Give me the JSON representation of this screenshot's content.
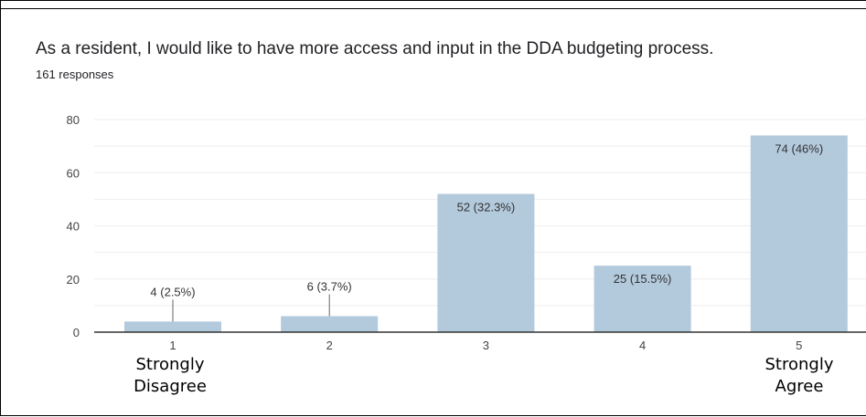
{
  "question": "As a resident, I would like to have more access and input in the DDA budgeting process.",
  "responses": "161 responses",
  "scale_labels": {
    "low": [
      "Strongly",
      "Disagree"
    ],
    "high": [
      "Strongly",
      "Agree"
    ]
  },
  "colors": {
    "bar": "#b3c9dc",
    "grid": "#eeeeee",
    "axis": "#333333"
  },
  "chart_data": {
    "type": "bar",
    "title": "As a resident, I would like to have more access and input in the DDA budgeting process.",
    "categories": [
      "1",
      "2",
      "3",
      "4",
      "5"
    ],
    "values": [
      4,
      6,
      52,
      25,
      74
    ],
    "data_labels": [
      "4 (2.5%)",
      "6 (3.7%)",
      "52 (32.3%)",
      "25 (15.5%)",
      "74 (46%)"
    ],
    "ylim": [
      0,
      80
    ],
    "yticks": [
      0,
      20,
      40,
      60,
      80
    ],
    "grid": true,
    "legend": "none"
  }
}
